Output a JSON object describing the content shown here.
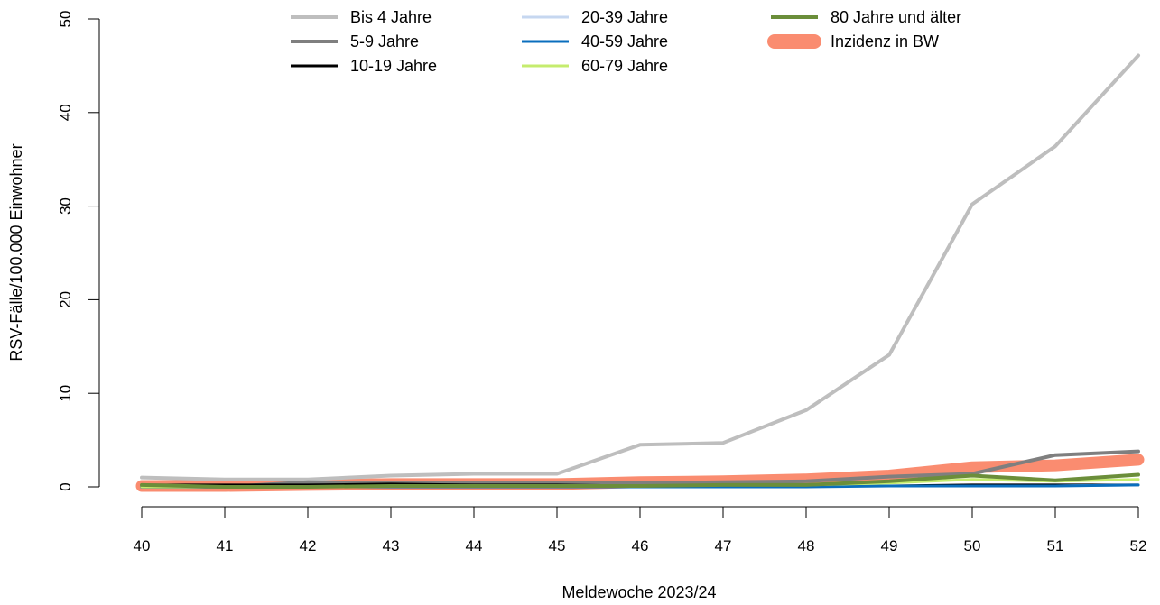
{
  "chart_data": {
    "type": "line",
    "title": "",
    "xlabel": "Meldewoche 2023/24",
    "ylabel": "RSV-Fälle/100.000 Einwohner",
    "x": [
      40,
      41,
      42,
      43,
      44,
      45,
      46,
      47,
      48,
      49,
      50,
      51,
      52
    ],
    "x_tick_labels": [
      "40",
      "41",
      "42",
      "43",
      "44",
      "45",
      "46",
      "47",
      "48",
      "49",
      "50",
      "51",
      "52"
    ],
    "xlim": [
      40,
      52
    ],
    "ylim": [
      0,
      50
    ],
    "y_ticks": [
      0,
      10,
      20,
      30,
      40,
      50
    ],
    "y_tick_labels": [
      "0",
      "10",
      "20",
      "30",
      "40",
      "50"
    ],
    "grid": false,
    "legend_position": "top",
    "series": [
      {
        "name": "Bis 4 Jahre",
        "color": "#bebebe",
        "width": 4,
        "values": [
          1.0,
          0.8,
          0.8,
          1.2,
          1.4,
          1.4,
          4.5,
          4.7,
          8.2,
          14.1,
          30.2,
          36.4,
          46.1
        ]
      },
      {
        "name": "5-9 Jahre",
        "color": "#7f7f7f",
        "width": 4,
        "values": [
          0.0,
          0.0,
          0.5,
          0.4,
          0.4,
          0.4,
          0.4,
          0.5,
          0.6,
          1.1,
          1.4,
          3.4,
          3.8
        ]
      },
      {
        "name": "10-19 Jahre",
        "color": "#000000",
        "width": 3,
        "values": [
          0.2,
          0.2,
          0.2,
          0.3,
          0.2,
          0.2,
          0.1,
          0.1,
          0.1,
          0.1,
          0.2,
          0.2,
          0.2
        ]
      },
      {
        "name": "20-39 Jahre",
        "color": "#c6d7f0",
        "width": 3,
        "values": [
          0.0,
          0.0,
          0.0,
          0.0,
          0.0,
          0.0,
          0.0,
          0.0,
          0.1,
          0.1,
          0.1,
          0.1,
          0.2
        ]
      },
      {
        "name": "40-59 Jahre",
        "color": "#0a6ebd",
        "width": 3,
        "values": [
          0.0,
          0.0,
          0.0,
          0.0,
          0.0,
          0.0,
          0.0,
          0.0,
          0.0,
          0.1,
          0.1,
          0.1,
          0.2
        ]
      },
      {
        "name": "60-79 Jahre",
        "color": "#c5ec6e",
        "width": 3,
        "values": [
          0.0,
          0.0,
          0.0,
          0.1,
          0.1,
          0.1,
          0.1,
          0.2,
          0.2,
          0.4,
          0.8,
          0.6,
          0.8
        ]
      },
      {
        "name": "80 Jahre und älter",
        "color": "#6b8e3a",
        "width": 4,
        "values": [
          0.2,
          0.0,
          0.0,
          0.1,
          0.1,
          0.1,
          0.1,
          0.2,
          0.2,
          0.6,
          1.2,
          0.7,
          1.3
        ]
      },
      {
        "name": "Inzidenz in BW",
        "color": "#fa8c70",
        "width": 13,
        "values": [
          0.1,
          0.1,
          0.2,
          0.3,
          0.3,
          0.3,
          0.5,
          0.6,
          0.8,
          1.2,
          2.1,
          2.3,
          2.9
        ]
      }
    ]
  }
}
